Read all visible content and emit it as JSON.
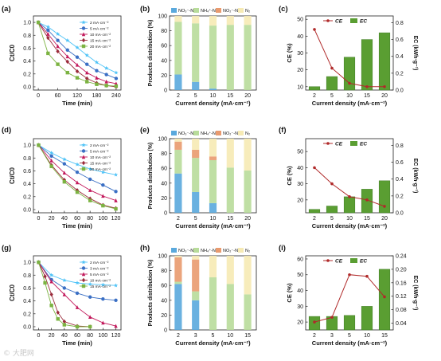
{
  "watermark": "© 大肥网",
  "legend_bottom_order_note": "",
  "colors": {
    "NO3": "#5aa9dd",
    "NH4": "#b8dc9a",
    "NO2": "#e99a6e",
    "N2": "#f6eab4",
    "CE": "#b02a2a",
    "EC": "#5a9e32",
    "rate_1": "#4fc3f7",
    "rate_2": "#3a6fc4",
    "rate_3": "#c2185b",
    "rate_4": "#9b2c3c",
    "rate_5": "#7cb342"
  },
  "chart_data": [
    {
      "id": "a",
      "panel_label": "(a)",
      "type": "line",
      "xlabel": "Time (min)",
      "ylabel": "Ct/C0",
      "xlim": [
        -15,
        255
      ],
      "xticks": [
        "0",
        "60",
        "120",
        "180",
        "240"
      ],
      "ylim": [
        -0.05,
        1.1
      ],
      "yticks": [
        "0.0",
        "0.2",
        "0.4",
        "0.6",
        "0.8",
        "1.0"
      ],
      "legend_position": "top-right",
      "series": [
        {
          "name": "2 mA·cm⁻²",
          "x": [
            0,
            30,
            60,
            90,
            120,
            150,
            180,
            210,
            240
          ],
          "values": [
            1.0,
            0.93,
            0.82,
            0.72,
            0.61,
            0.49,
            0.38,
            0.29,
            0.22
          ]
        },
        {
          "name": "5 mA·cm⁻²",
          "x": [
            0,
            30,
            60,
            90,
            120,
            150,
            180,
            210,
            240
          ],
          "values": [
            1.0,
            0.88,
            0.72,
            0.57,
            0.46,
            0.35,
            0.25,
            0.19,
            0.13
          ]
        },
        {
          "name": "10 mA·cm⁻²",
          "x": [
            0,
            30,
            60,
            90,
            120,
            150,
            180,
            210,
            240
          ],
          "values": [
            1.0,
            0.82,
            0.63,
            0.47,
            0.34,
            0.22,
            0.14,
            0.08,
            0.05
          ]
        },
        {
          "name": "15 mA·cm⁻²",
          "x": [
            0,
            30,
            60,
            90,
            120,
            150,
            180,
            210,
            240
          ],
          "values": [
            1.0,
            0.76,
            0.55,
            0.39,
            0.24,
            0.13,
            0.06,
            0.02,
            0.0
          ]
        },
        {
          "name": "20 mA·cm⁻²",
          "x": [
            0,
            30,
            60,
            90,
            120,
            150,
            180,
            210,
            240
          ],
          "values": [
            1.0,
            0.52,
            0.35,
            0.22,
            0.14,
            0.08,
            0.04,
            0.02,
            0.01
          ]
        }
      ]
    },
    {
      "id": "b",
      "panel_label": "(b)",
      "type": "bar",
      "xlabel": "Current density (mA·cm⁻²)",
      "ylabel": "Products distribution (%)",
      "categories": [
        "2",
        "5",
        "10",
        "15",
        "20"
      ],
      "ylim": [
        0,
        100
      ],
      "yticks": [
        "0",
        "20",
        "40",
        "60",
        "80",
        "100"
      ],
      "legend_position": "top",
      "series": [
        {
          "name": "NO₃⁻-N",
          "values": [
            21,
            11,
            2,
            0,
            0
          ]
        },
        {
          "name": "NH₄⁺-N",
          "values": [
            71,
            79,
            85,
            88,
            88
          ]
        },
        {
          "name": "NO₂⁻-N",
          "values": [
            0,
            0,
            0,
            0,
            0
          ]
        },
        {
          "name": "N₂",
          "values": [
            8,
            10,
            13,
            12,
            12
          ]
        }
      ]
    },
    {
      "id": "c",
      "panel_label": "(c)",
      "type": "bar",
      "xlabel": "Current density (mA·cm⁻²)",
      "ylabel": "CE (%)",
      "ylabel_right": "EC (kWh·g⁻¹)",
      "categories": [
        "2",
        "5",
        "10",
        "15",
        "20"
      ],
      "ylim": [
        8,
        52
      ],
      "yticks": [
        "10",
        "20",
        "30",
        "40",
        "50"
      ],
      "ylim_right": [
        0,
        0.88
      ],
      "yticks_right": [
        "0.0",
        "0.2",
        "0.4",
        "0.6",
        "0.8"
      ],
      "legend_position": "top",
      "series": [
        {
          "name": "CE",
          "kind": "line",
          "values": [
            44,
            21,
            12,
            10,
            10
          ]
        },
        {
          "name": "EC",
          "kind": "bar",
          "values": [
            0.04,
            0.16,
            0.39,
            0.6,
            0.68
          ]
        }
      ]
    },
    {
      "id": "d",
      "panel_label": "(d)",
      "type": "line",
      "xlabel": "Time (min)",
      "ylabel": "Ct/C0",
      "xlim": [
        -8,
        128
      ],
      "xticks": [
        "0",
        "20",
        "40",
        "60",
        "80",
        "100",
        "120"
      ],
      "ylim": [
        -0.05,
        1.1
      ],
      "yticks": [
        "0.0",
        "0.2",
        "0.4",
        "0.6",
        "0.8",
        "1.0"
      ],
      "legend_position": "top-right",
      "series": [
        {
          "name": "2 mA·cm⁻²",
          "x": [
            0,
            20,
            40,
            60,
            80,
            100,
            120
          ],
          "values": [
            1.0,
            0.88,
            0.78,
            0.7,
            0.63,
            0.58,
            0.54
          ]
        },
        {
          "name": "5 mA·cm⁻²",
          "x": [
            0,
            20,
            40,
            60,
            80,
            100,
            120
          ],
          "values": [
            1.0,
            0.83,
            0.71,
            0.58,
            0.47,
            0.38,
            0.28
          ]
        },
        {
          "name": "10 mA·cm⁻²",
          "x": [
            0,
            20,
            40,
            60,
            80,
            100,
            120
          ],
          "values": [
            1.0,
            0.76,
            0.57,
            0.42,
            0.3,
            0.21,
            0.14
          ]
        },
        {
          "name": "15 mA·cm⁻²",
          "x": [
            0,
            20,
            40,
            60,
            80,
            100,
            120
          ],
          "values": [
            1.0,
            0.69,
            0.46,
            0.3,
            0.17,
            0.07,
            0.02
          ]
        },
        {
          "name": "20 mA·cm⁻²",
          "x": [
            0,
            20,
            40,
            60,
            80,
            100,
            120
          ],
          "values": [
            1.0,
            0.67,
            0.43,
            0.27,
            0.14,
            0.06,
            0.01
          ]
        }
      ]
    },
    {
      "id": "e",
      "panel_label": "(e)",
      "type": "bar",
      "xlabel": "Current density (mA·cm⁻²)",
      "ylabel": "Products distribution (%)",
      "categories": [
        "2",
        "5",
        "10",
        "15",
        "20"
      ],
      "ylim": [
        0,
        100
      ],
      "yticks": [
        "0",
        "20",
        "40",
        "60",
        "80",
        "100"
      ],
      "legend_position": "top",
      "series": [
        {
          "name": "NO₃⁻-N",
          "values": [
            53,
            28,
            13,
            0,
            0
          ]
        },
        {
          "name": "NH₄⁺-N",
          "values": [
            32,
            46,
            58,
            61,
            57
          ]
        },
        {
          "name": "NO₂⁻-N",
          "values": [
            11,
            11,
            5,
            0,
            0
          ]
        },
        {
          "name": "N₂",
          "values": [
            4,
            15,
            24,
            39,
            43
          ]
        }
      ]
    },
    {
      "id": "f",
      "panel_label": "(f)",
      "type": "bar",
      "xlabel": "Current density (mA·cm⁻²)",
      "ylabel": "CE (%)",
      "ylabel_right": "EC (kWh·g⁻¹)",
      "categories": [
        "2",
        "5",
        "10",
        "15",
        "20"
      ],
      "ylim": [
        12,
        58
      ],
      "yticks": [
        "20",
        "30",
        "40",
        "50"
      ],
      "ylim_right": [
        0,
        0.88
      ],
      "yticks_right": [
        "0.0",
        "0.2",
        "0.4",
        "0.6",
        "0.8"
      ],
      "legend_position": "top",
      "series": [
        {
          "name": "CE",
          "kind": "line",
          "values": [
            40,
            30,
            22,
            20,
            16
          ]
        },
        {
          "name": "EC",
          "kind": "bar",
          "values": [
            0.04,
            0.08,
            0.19,
            0.28,
            0.38
          ]
        }
      ]
    },
    {
      "id": "g",
      "panel_label": "(g)",
      "type": "line",
      "xlabel": "Time (min)",
      "ylabel": "Ct/C0",
      "xlim": [
        -8,
        128
      ],
      "xticks": [
        "0",
        "20",
        "40",
        "60",
        "80",
        "100",
        "120"
      ],
      "ylim": [
        -0.05,
        1.1
      ],
      "yticks": [
        "0.0",
        "0.2",
        "0.4",
        "0.6",
        "0.8",
        "1.0"
      ],
      "legend_position": "top-right",
      "series": [
        {
          "name": "2 mA·cm⁻²",
          "x": [
            0,
            20,
            40,
            60,
            80,
            100,
            120
          ],
          "values": [
            1.0,
            0.8,
            0.72,
            0.68,
            0.66,
            0.65,
            0.64
          ]
        },
        {
          "name": "3 mA·cm⁻²",
          "x": [
            0,
            20,
            40,
            60,
            80,
            100,
            120
          ],
          "values": [
            1.0,
            0.73,
            0.6,
            0.52,
            0.46,
            0.43,
            0.41
          ]
        },
        {
          "name": "5 mA·cm⁻²",
          "x": [
            0,
            20,
            40,
            60,
            80,
            100,
            120
          ],
          "values": [
            1.0,
            0.7,
            0.5,
            0.3,
            0.15,
            0.06,
            0.01
          ]
        },
        {
          "name": "10 mA·cm⁻²",
          "x": [
            0,
            10,
            20,
            30,
            40,
            60,
            80
          ],
          "values": [
            1.0,
            0.78,
            0.5,
            0.22,
            0.08,
            0.01,
            0.0
          ]
        },
        {
          "name": "15 mA·cm⁻²",
          "x": [
            0,
            10,
            20,
            30,
            40,
            60,
            80
          ],
          "values": [
            1.0,
            0.68,
            0.33,
            0.12,
            0.03,
            0.0,
            0.0
          ]
        }
      ]
    },
    {
      "id": "h",
      "panel_label": "(h)",
      "type": "bar",
      "xlabel": "Current density (mA·cm⁻²)",
      "ylabel": "Products distribution (%)",
      "categories": [
        "2",
        "3",
        "5",
        "10",
        "15"
      ],
      "ylim": [
        0,
        100
      ],
      "yticks": [
        "0",
        "20",
        "40",
        "60",
        "80",
        "100"
      ],
      "legend_position": "top",
      "series": [
        {
          "name": "NO₃⁻-N",
          "values": [
            62,
            40,
            0,
            0,
            0
          ]
        },
        {
          "name": "NH₄⁺-N",
          "values": [
            3,
            12,
            71,
            62,
            48
          ]
        },
        {
          "name": "NO₂⁻-N",
          "values": [
            33,
            43,
            0,
            0,
            0
          ]
        },
        {
          "name": "N₂",
          "values": [
            2,
            5,
            29,
            38,
            52
          ]
        }
      ]
    },
    {
      "id": "i",
      "panel_label": "(i)",
      "type": "bar",
      "xlabel": "Current density (mA·cm⁻²)",
      "ylabel": "CE (%)",
      "ylabel_right": "EC (kWh·g⁻¹)",
      "categories": [
        "2",
        "3",
        "5",
        "10",
        "15"
      ],
      "ylim": [
        15,
        62
      ],
      "yticks": [
        "20",
        "30",
        "40",
        "50",
        "60"
      ],
      "ylim_right": [
        0.02,
        0.24
      ],
      "yticks_right": [
        "0.04",
        "0.08",
        "0.12",
        "0.16",
        "0.20",
        "0.24"
      ],
      "legend_position": "top",
      "series": [
        {
          "name": "CE",
          "kind": "line",
          "values": [
            20,
            23,
            50,
            49,
            36
          ]
        },
        {
          "name": "EC",
          "kind": "bar",
          "values": [
            0.06,
            0.06,
            0.063,
            0.09,
            0.2
          ]
        }
      ]
    }
  ]
}
